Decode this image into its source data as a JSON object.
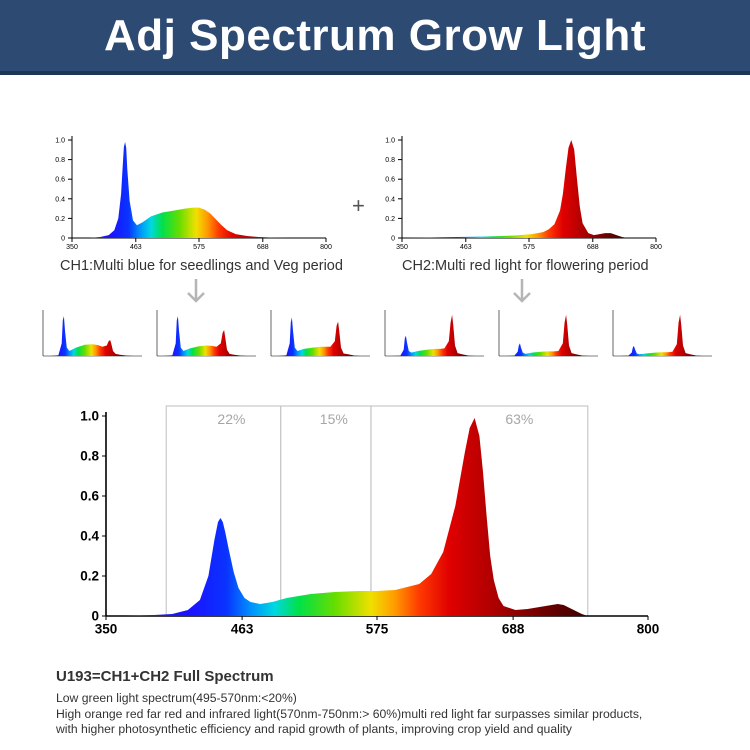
{
  "title": "Adj Spectrum Grow Light",
  "plus_sign": "+",
  "ch1_caption": "CH1:Multi blue for seedlings and Veg period",
  "ch2_caption": "CH2:Multi red  light for flowering period",
  "description": {
    "heading": "U193=CH1+CH2 Full Spectrum",
    "lines": [
      "Low green light spectrum(495-570nm:<20%)",
      "High orange red far red and infrared light(570nm-750nm:> 60%)multi red light far surpasses similar products,",
      "with higher photosynthetic efficiency and rapid growth of plants, improving crop yield and quality"
    ]
  },
  "chart_data": [
    {
      "id": "ch1",
      "type": "area",
      "x_ticks": [
        350,
        463,
        575,
        688,
        800
      ],
      "y_ticks": [
        "0",
        "0.2",
        "0.4",
        "0.6",
        "0.8",
        "1.0"
      ],
      "xlim": [
        350,
        800
      ],
      "ylim": [
        0,
        1
      ],
      "x": [
        380,
        400,
        415,
        425,
        432,
        437,
        440,
        442,
        444,
        446,
        448,
        452,
        458,
        465,
        475,
        490,
        510,
        530,
        550,
        565,
        575,
        585,
        595,
        605,
        615,
        625,
        640,
        660,
        680,
        700,
        720,
        740
      ],
      "y": [
        0,
        0.01,
        0.03,
        0.08,
        0.2,
        0.45,
        0.75,
        0.93,
        0.98,
        0.92,
        0.7,
        0.38,
        0.18,
        0.13,
        0.16,
        0.22,
        0.26,
        0.28,
        0.3,
        0.31,
        0.31,
        0.29,
        0.25,
        0.19,
        0.13,
        0.08,
        0.04,
        0.02,
        0.01,
        0.005,
        0.002,
        0
      ]
    },
    {
      "id": "ch2",
      "type": "area",
      "x_ticks": [
        350,
        463,
        575,
        688,
        800
      ],
      "y_ticks": [
        "0",
        "0.2",
        "0.4",
        "0.6",
        "0.8",
        "1.0"
      ],
      "xlim": [
        350,
        800
      ],
      "ylim": [
        0,
        1
      ],
      "x": [
        350,
        400,
        450,
        500,
        550,
        580,
        600,
        610,
        620,
        630,
        635,
        640,
        645,
        650,
        655,
        660,
        665,
        670,
        680,
        690,
        700,
        710,
        720,
        730,
        740,
        750
      ],
      "y": [
        0,
        0.005,
        0.01,
        0.015,
        0.025,
        0.04,
        0.06,
        0.09,
        0.14,
        0.28,
        0.45,
        0.7,
        0.92,
        1.0,
        0.9,
        0.6,
        0.32,
        0.15,
        0.05,
        0.03,
        0.04,
        0.05,
        0.05,
        0.03,
        0.01,
        0
      ]
    },
    {
      "id": "mix1",
      "type": "area",
      "xlim": [
        350,
        800
      ],
      "ylim": [
        0,
        1
      ],
      "x": [
        380,
        420,
        435,
        440,
        445,
        450,
        458,
        470,
        500,
        540,
        575,
        600,
        620,
        640,
        648,
        655,
        660,
        668,
        680,
        700,
        730,
        760
      ],
      "y": [
        0,
        0.02,
        0.3,
        0.85,
        0.95,
        0.6,
        0.2,
        0.12,
        0.2,
        0.27,
        0.28,
        0.26,
        0.22,
        0.25,
        0.35,
        0.38,
        0.3,
        0.12,
        0.05,
        0.03,
        0.01,
        0
      ]
    },
    {
      "id": "mix2",
      "type": "area",
      "xlim": [
        350,
        800
      ],
      "ylim": [
        0,
        1
      ],
      "x": [
        380,
        420,
        435,
        440,
        445,
        450,
        458,
        470,
        500,
        540,
        575,
        600,
        620,
        640,
        648,
        655,
        660,
        668,
        680,
        700,
        730,
        760
      ],
      "y": [
        0,
        0.02,
        0.3,
        0.85,
        0.95,
        0.6,
        0.2,
        0.12,
        0.18,
        0.23,
        0.25,
        0.24,
        0.22,
        0.3,
        0.55,
        0.62,
        0.45,
        0.15,
        0.05,
        0.03,
        0.01,
        0
      ]
    },
    {
      "id": "mix3",
      "type": "area",
      "xlim": [
        350,
        800
      ],
      "ylim": [
        0,
        1
      ],
      "x": [
        380,
        420,
        435,
        440,
        445,
        450,
        458,
        470,
        500,
        540,
        575,
        600,
        620,
        640,
        648,
        655,
        660,
        668,
        680,
        700,
        730,
        760
      ],
      "y": [
        0,
        0.02,
        0.3,
        0.8,
        0.92,
        0.6,
        0.2,
        0.12,
        0.17,
        0.2,
        0.22,
        0.22,
        0.22,
        0.35,
        0.72,
        0.82,
        0.6,
        0.2,
        0.06,
        0.04,
        0.01,
        0
      ]
    },
    {
      "id": "mix4",
      "type": "area",
      "xlim": [
        350,
        800
      ],
      "ylim": [
        0,
        1
      ],
      "x": [
        380,
        420,
        435,
        440,
        445,
        450,
        458,
        470,
        500,
        540,
        575,
        600,
        620,
        640,
        648,
        655,
        660,
        668,
        680,
        700,
        730,
        760
      ],
      "y": [
        0,
        0.01,
        0.15,
        0.42,
        0.48,
        0.32,
        0.12,
        0.08,
        0.12,
        0.15,
        0.17,
        0.17,
        0.18,
        0.35,
        0.8,
        0.98,
        0.75,
        0.25,
        0.07,
        0.04,
        0.01,
        0
      ]
    },
    {
      "id": "mix5",
      "type": "area",
      "xlim": [
        350,
        800
      ],
      "ylim": [
        0,
        1
      ],
      "x": [
        380,
        420,
        435,
        440,
        445,
        450,
        458,
        470,
        500,
        540,
        575,
        600,
        620,
        640,
        648,
        655,
        660,
        668,
        680,
        700,
        730,
        760
      ],
      "y": [
        0,
        0.01,
        0.1,
        0.25,
        0.3,
        0.2,
        0.08,
        0.05,
        0.08,
        0.1,
        0.11,
        0.11,
        0.12,
        0.3,
        0.8,
        0.98,
        0.75,
        0.25,
        0.07,
        0.04,
        0.01,
        0
      ]
    },
    {
      "id": "mix6",
      "type": "area",
      "xlim": [
        350,
        800
      ],
      "ylim": [
        0,
        1
      ],
      "x": [
        380,
        420,
        435,
        440,
        445,
        450,
        458,
        470,
        500,
        540,
        575,
        600,
        620,
        640,
        648,
        655,
        660,
        668,
        680,
        700,
        730,
        760
      ],
      "y": [
        0,
        0.01,
        0.08,
        0.2,
        0.24,
        0.16,
        0.06,
        0.04,
        0.06,
        0.08,
        0.09,
        0.09,
        0.1,
        0.28,
        0.8,
        0.98,
        0.75,
        0.25,
        0.07,
        0.04,
        0.01,
        0
      ]
    },
    {
      "id": "full",
      "type": "area",
      "title": "U193=CH1+CH2 Full Spectrum",
      "x_ticks": [
        350,
        463,
        575,
        688,
        800
      ],
      "y_ticks": [
        "0",
        "0.2",
        "0.4",
        "0.6",
        "0.8",
        "1.0"
      ],
      "xlim": [
        350,
        800
      ],
      "ylim": [
        0,
        1
      ],
      "x": [
        365,
        390,
        405,
        418,
        428,
        435,
        440,
        443,
        445,
        447,
        449,
        452,
        456,
        460,
        465,
        470,
        478,
        488,
        500,
        520,
        540,
        560,
        575,
        590,
        610,
        620,
        630,
        640,
        648,
        652,
        656,
        660,
        663,
        666,
        669,
        672,
        676,
        680,
        690,
        700,
        710,
        720,
        725,
        730,
        735,
        745,
        750
      ],
      "y": [
        0,
        0.005,
        0.01,
        0.03,
        0.08,
        0.2,
        0.38,
        0.47,
        0.49,
        0.47,
        0.42,
        0.33,
        0.22,
        0.14,
        0.09,
        0.07,
        0.06,
        0.07,
        0.09,
        0.11,
        0.12,
        0.125,
        0.125,
        0.13,
        0.16,
        0.21,
        0.32,
        0.55,
        0.82,
        0.94,
        0.99,
        0.9,
        0.72,
        0.5,
        0.3,
        0.18,
        0.09,
        0.05,
        0.03,
        0.035,
        0.045,
        0.055,
        0.06,
        0.055,
        0.04,
        0.01,
        0
      ],
      "regions": [
        {
          "from": 400,
          "to": 495,
          "label": "22%"
        },
        {
          "from": 495,
          "to": 570,
          "label": "15%"
        },
        {
          "from": 570,
          "to": 750,
          "label": "63%"
        }
      ]
    }
  ]
}
